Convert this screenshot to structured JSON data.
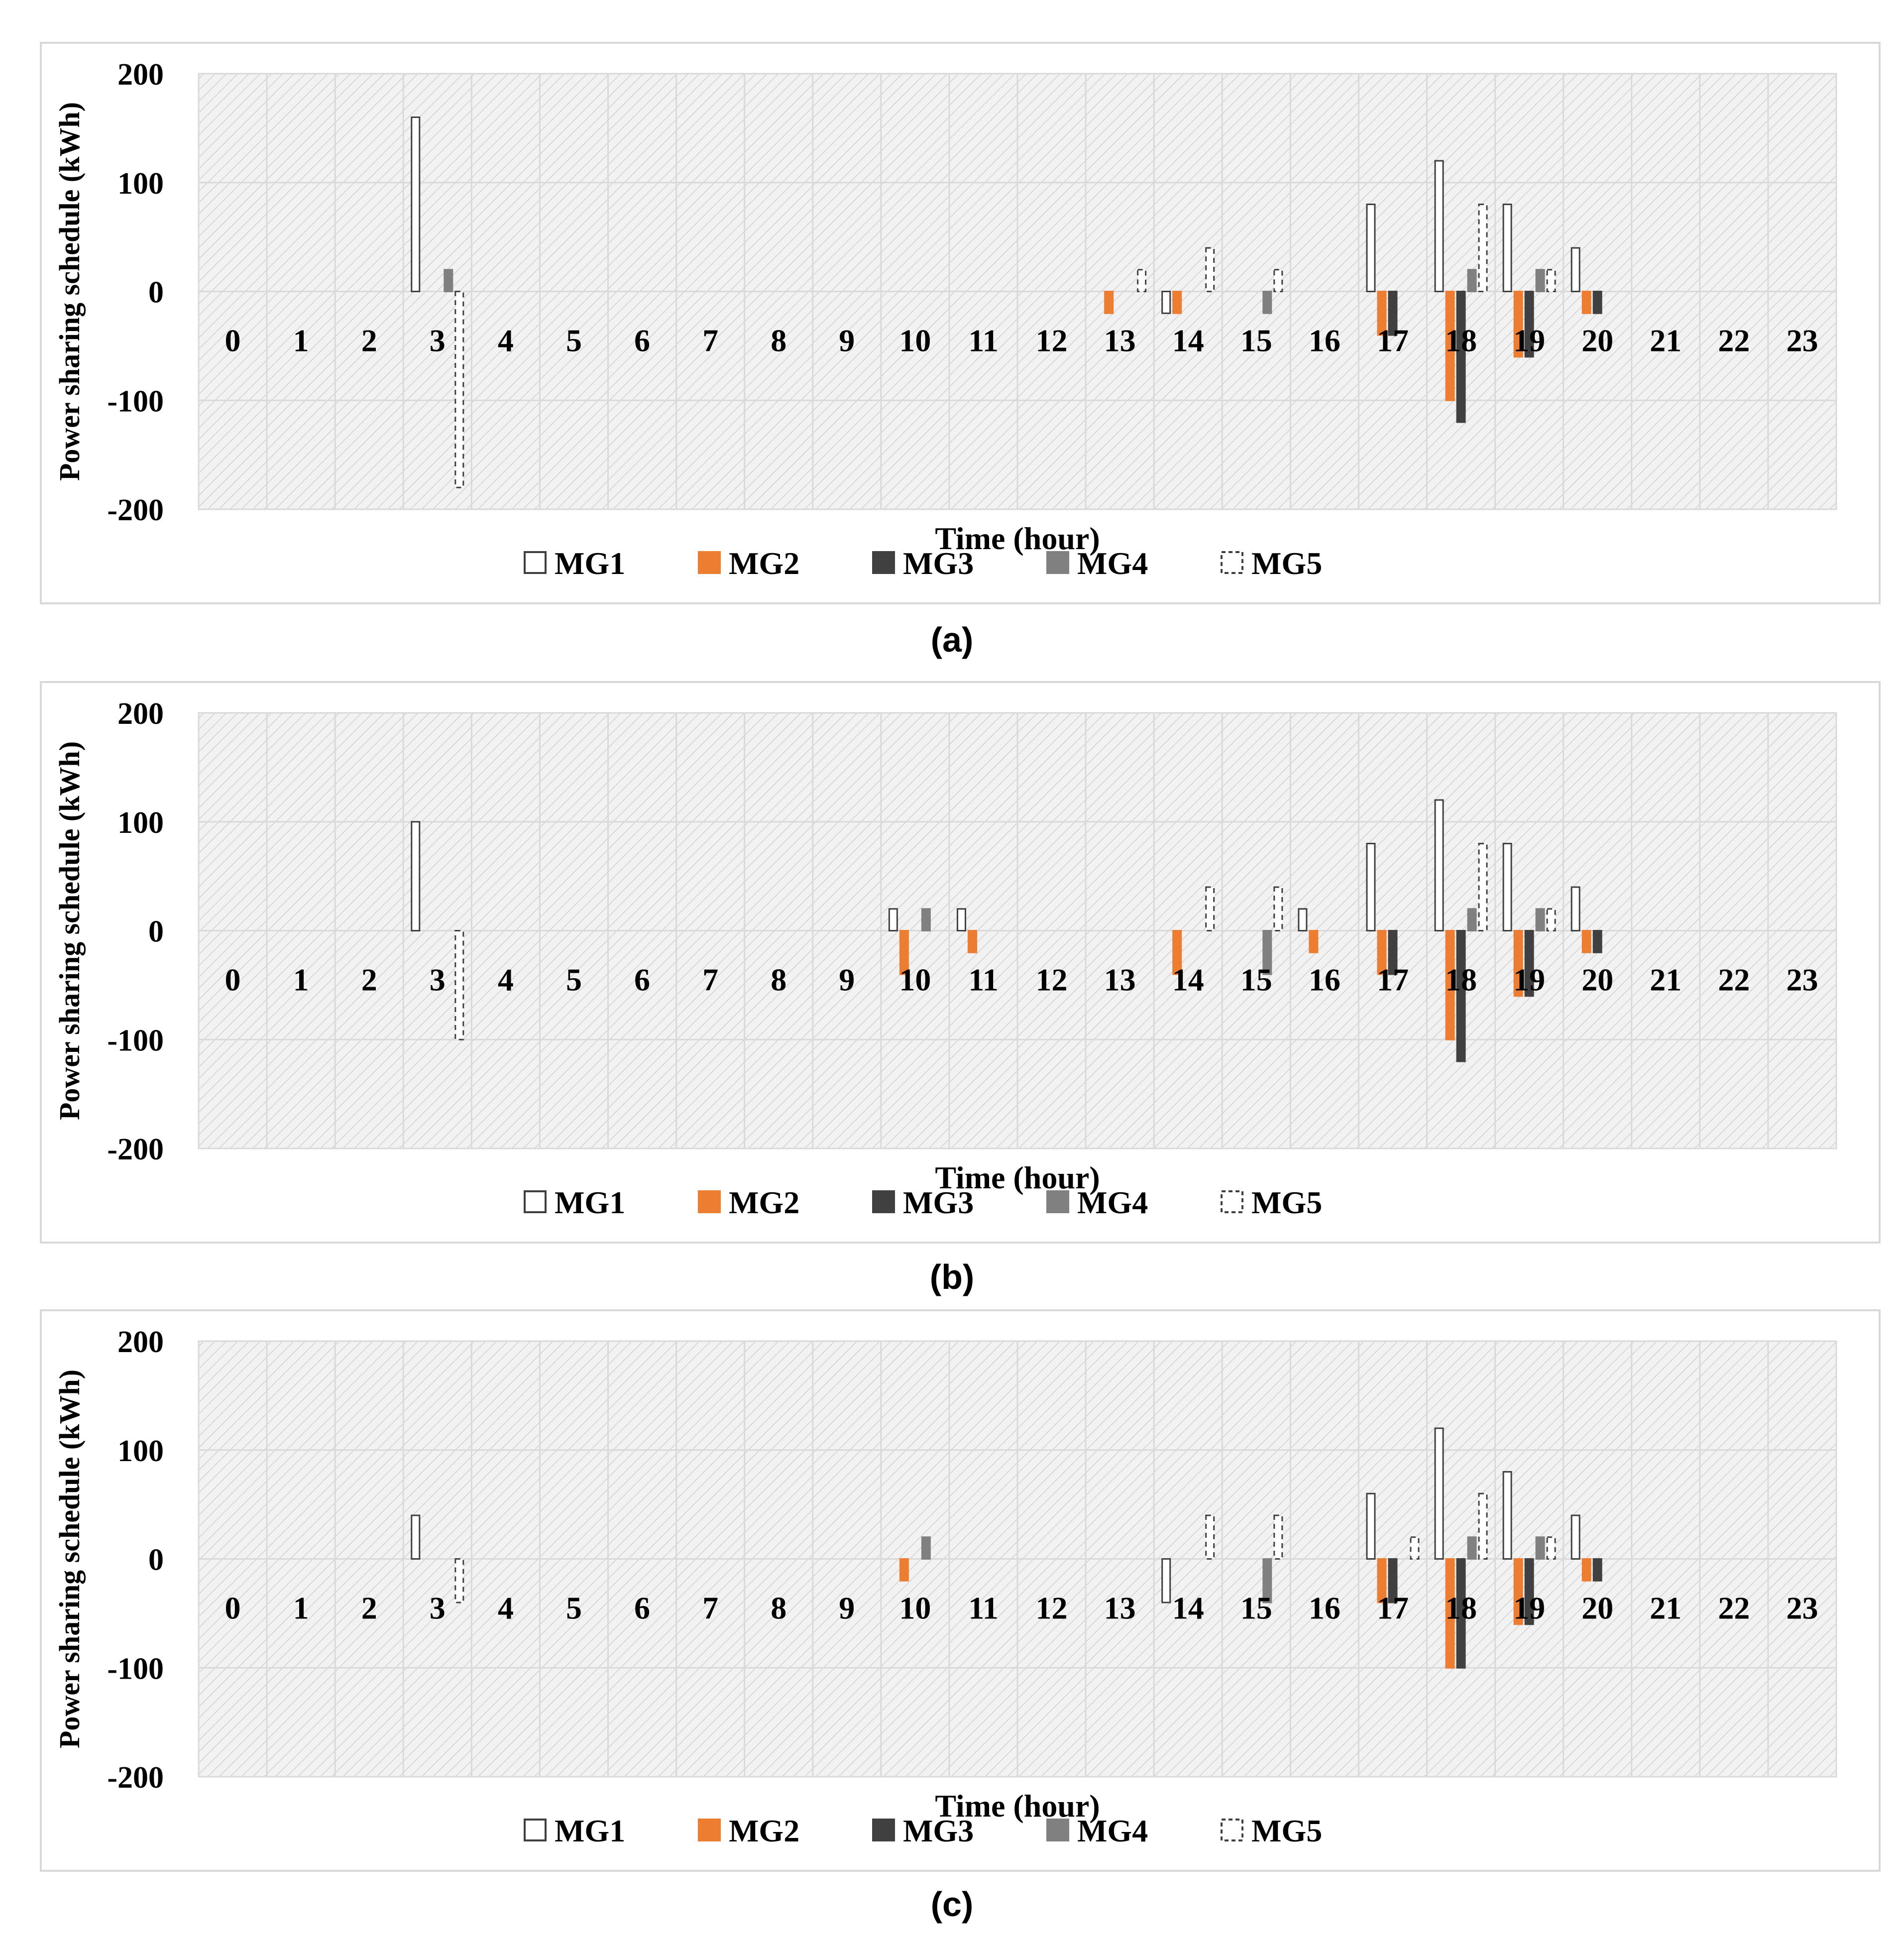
{
  "chart_data": [
    {
      "type": "bar",
      "panel_label": "(a)",
      "xlabel": "Time (hour)",
      "ylabel": "Power sharing schedule (kWh)",
      "ylim": [
        -200,
        200
      ],
      "yticks": [
        "200",
        "100",
        "0",
        "-100",
        "-200"
      ],
      "categories": [
        "0",
        "1",
        "2",
        "3",
        "4",
        "5",
        "6",
        "7",
        "8",
        "9",
        "10",
        "11",
        "12",
        "13",
        "14",
        "15",
        "16",
        "17",
        "18",
        "19",
        "20",
        "21",
        "22",
        "23"
      ],
      "series": [
        {
          "name": "MG1",
          "values": [
            0,
            0,
            0,
            160,
            0,
            0,
            0,
            0,
            0,
            0,
            0,
            0,
            0,
            0,
            -20,
            0,
            0,
            80,
            120,
            80,
            40,
            0,
            0,
            0
          ]
        },
        {
          "name": "MG2",
          "values": [
            0,
            0,
            0,
            0,
            0,
            0,
            0,
            0,
            0,
            0,
            0,
            0,
            0,
            -20,
            -20,
            0,
            0,
            -40,
            -100,
            -60,
            -20,
            0,
            0,
            0
          ]
        },
        {
          "name": "MG3",
          "values": [
            0,
            0,
            0,
            0,
            0,
            0,
            0,
            0,
            0,
            0,
            0,
            0,
            0,
            0,
            0,
            0,
            0,
            -40,
            -120,
            -60,
            -20,
            0,
            0,
            0
          ]
        },
        {
          "name": "MG4",
          "values": [
            0,
            0,
            0,
            20,
            0,
            0,
            0,
            0,
            0,
            0,
            0,
            0,
            0,
            0,
            0,
            -20,
            0,
            0,
            20,
            20,
            0,
            0,
            0,
            0
          ]
        },
        {
          "name": "MG5",
          "values": [
            0,
            0,
            0,
            -180,
            0,
            0,
            0,
            0,
            0,
            0,
            0,
            0,
            0,
            20,
            40,
            20,
            0,
            0,
            80,
            20,
            0,
            0,
            0,
            0
          ]
        }
      ]
    },
    {
      "type": "bar",
      "panel_label": "(b)",
      "xlabel": "Time (hour)",
      "ylabel": "Power sharing schedule (kWh)",
      "ylim": [
        -200,
        200
      ],
      "yticks": [
        "200",
        "100",
        "0",
        "-100",
        "-200"
      ],
      "categories": [
        "0",
        "1",
        "2",
        "3",
        "4",
        "5",
        "6",
        "7",
        "8",
        "9",
        "10",
        "11",
        "12",
        "13",
        "14",
        "15",
        "16",
        "17",
        "18",
        "19",
        "20",
        "21",
        "22",
        "23"
      ],
      "series": [
        {
          "name": "MG1",
          "values": [
            0,
            0,
            0,
            100,
            0,
            0,
            0,
            0,
            0,
            0,
            20,
            20,
            0,
            0,
            0,
            0,
            20,
            80,
            120,
            80,
            40,
            0,
            0,
            0
          ]
        },
        {
          "name": "MG2",
          "values": [
            0,
            0,
            0,
            0,
            0,
            0,
            0,
            0,
            0,
            0,
            -40,
            -20,
            0,
            0,
            -40,
            0,
            -20,
            -40,
            -100,
            -60,
            -20,
            0,
            0,
            0
          ]
        },
        {
          "name": "MG3",
          "values": [
            0,
            0,
            0,
            0,
            0,
            0,
            0,
            0,
            0,
            0,
            0,
            0,
            0,
            0,
            0,
            0,
            0,
            -40,
            -120,
            -60,
            -20,
            0,
            0,
            0
          ]
        },
        {
          "name": "MG4",
          "values": [
            0,
            0,
            0,
            0,
            0,
            0,
            0,
            0,
            0,
            0,
            20,
            0,
            0,
            0,
            0,
            -40,
            0,
            0,
            20,
            20,
            0,
            0,
            0,
            0
          ]
        },
        {
          "name": "MG5",
          "values": [
            0,
            0,
            0,
            -100,
            0,
            0,
            0,
            0,
            0,
            0,
            0,
            0,
            0,
            0,
            40,
            40,
            0,
            0,
            80,
            20,
            0,
            0,
            0,
            0
          ]
        }
      ]
    },
    {
      "type": "bar",
      "panel_label": "(c)",
      "xlabel": "Time (hour)",
      "ylabel": "Power sharing schedule (kWh)",
      "ylim": [
        -200,
        200
      ],
      "yticks": [
        "200",
        "100",
        "0",
        "-100",
        "-200"
      ],
      "categories": [
        "0",
        "1",
        "2",
        "3",
        "4",
        "5",
        "6",
        "7",
        "8",
        "9",
        "10",
        "11",
        "12",
        "13",
        "14",
        "15",
        "16",
        "17",
        "18",
        "19",
        "20",
        "21",
        "22",
        "23"
      ],
      "series": [
        {
          "name": "MG1",
          "values": [
            0,
            0,
            0,
            40,
            0,
            0,
            0,
            0,
            0,
            0,
            0,
            0,
            0,
            0,
            -40,
            0,
            0,
            60,
            120,
            80,
            40,
            0,
            0,
            0
          ]
        },
        {
          "name": "MG2",
          "values": [
            0,
            0,
            0,
            0,
            0,
            0,
            0,
            0,
            0,
            0,
            -20,
            0,
            0,
            0,
            0,
            0,
            0,
            -40,
            -100,
            -60,
            -20,
            0,
            0,
            0
          ]
        },
        {
          "name": "MG3",
          "values": [
            0,
            0,
            0,
            0,
            0,
            0,
            0,
            0,
            0,
            0,
            0,
            0,
            0,
            0,
            0,
            0,
            0,
            -40,
            -100,
            -60,
            -20,
            0,
            0,
            0
          ]
        },
        {
          "name": "MG4",
          "values": [
            0,
            0,
            0,
            0,
            0,
            0,
            0,
            0,
            0,
            0,
            20,
            0,
            0,
            0,
            0,
            -40,
            0,
            0,
            20,
            20,
            0,
            0,
            0,
            0
          ]
        },
        {
          "name": "MG5",
          "values": [
            0,
            0,
            0,
            -40,
            0,
            0,
            0,
            0,
            0,
            0,
            0,
            0,
            0,
            0,
            40,
            40,
            0,
            20,
            60,
            20,
            0,
            0,
            0,
            0
          ]
        }
      ]
    }
  ],
  "colors": {
    "MG1": "#ffffff",
    "MG2": "#ed7d31",
    "MG3": "#404040",
    "MG4": "#808080",
    "MG5": "#ffffff",
    "outline": "#404040",
    "grid": "#d9d9d9",
    "plot_bg": "#f2f2f2",
    "hatch": "#d0d0d0"
  }
}
